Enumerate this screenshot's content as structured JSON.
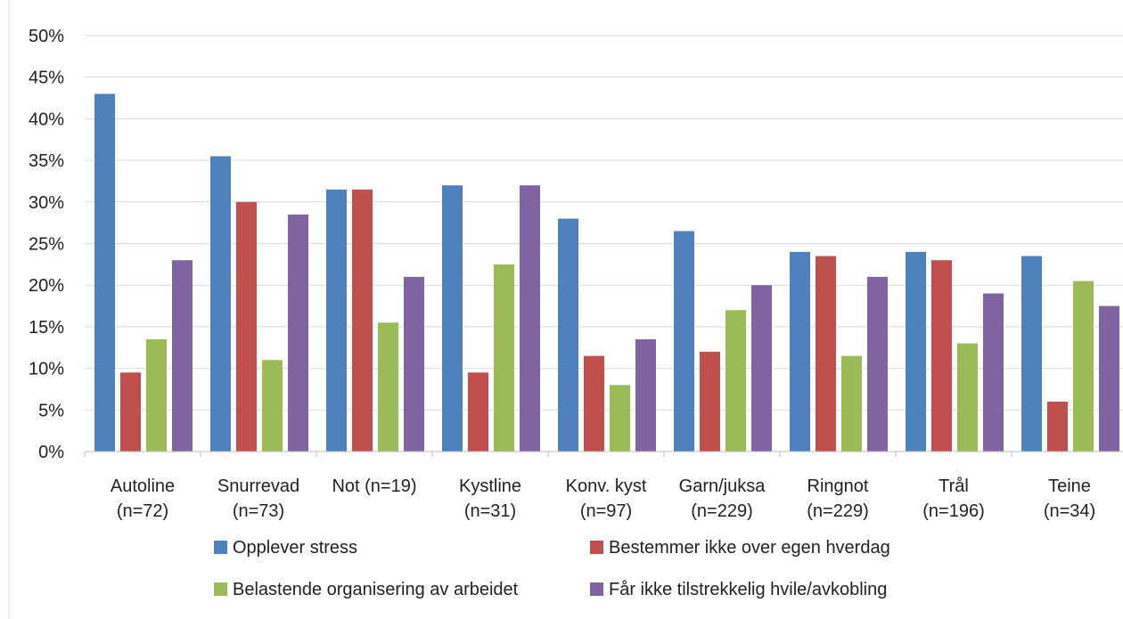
{
  "chart_data": {
    "type": "bar",
    "categories": [
      [
        "Autoline",
        "(n=72)"
      ],
      [
        "Snurrevad",
        "(n=73)"
      ],
      [
        "Not (n=19)"
      ],
      [
        "Kystline",
        "(n=31)"
      ],
      [
        "Konv. kyst",
        "(n=97)"
      ],
      [
        "Garn/juksa",
        "(n=229)"
      ],
      [
        "Ringnot",
        "(n=229)"
      ],
      [
        "Trål",
        "(n=196)"
      ],
      [
        "Teine",
        "(n=34)"
      ]
    ],
    "series": [
      {
        "name": "Opplever stress",
        "color": "#4f81bd",
        "values": [
          43,
          35.5,
          31.5,
          32,
          28,
          26.5,
          24,
          24,
          23.5
        ]
      },
      {
        "name": "Bestemmer ikke over egen hverdag",
        "color": "#c0504d",
        "values": [
          9.5,
          30,
          31.5,
          9.5,
          11.5,
          12,
          23.5,
          23,
          6
        ]
      },
      {
        "name": "Belastende organisering av arbeidet",
        "color": "#9bbb59",
        "values": [
          13.5,
          11,
          15.5,
          22.5,
          8,
          17,
          11.5,
          13,
          20.5
        ]
      },
      {
        "name": "Får ikke tilstrekkelig hvile/avkobling",
        "color": "#8064a2",
        "values": [
          23,
          28.5,
          21,
          32,
          13.5,
          20,
          21,
          19,
          17.5
        ]
      }
    ],
    "yticks": [
      "0%",
      "5%",
      "10%",
      "15%",
      "20%",
      "25%",
      "30%",
      "35%",
      "40%",
      "45%",
      "50%"
    ],
    "ylim": [
      0,
      50
    ],
    "grid": true,
    "legend_position": "bottom"
  }
}
